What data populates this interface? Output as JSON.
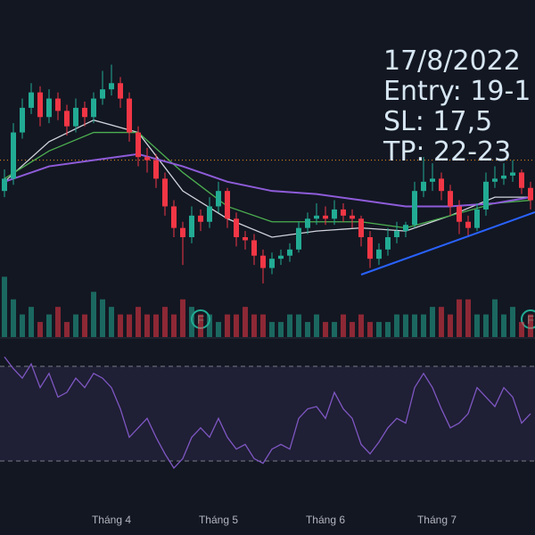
{
  "chart_data": [
    {
      "type": "candlestick",
      "xlim": [
        -0.5,
        59.5
      ],
      "ylim": [
        15.5,
        26.5
      ],
      "up_color": "#22ab94",
      "down_color": "#f23645",
      "open": [
        20.3,
        20.7,
        22.2,
        23.0,
        23.5,
        22.7,
        23.3,
        22.9,
        22.4,
        23.0,
        22.7,
        23.3,
        23.6,
        23.8,
        23.3,
        22.2,
        21.4,
        21.3,
        20.7,
        19.8,
        19.1,
        18.8,
        19.5,
        19.3,
        19.8,
        20.3,
        19.4,
        18.8,
        18.7,
        18.2,
        17.8,
        18.1,
        18.2,
        18.4,
        19.1,
        19.4,
        19.5,
        19.4,
        19.7,
        19.5,
        19.4,
        18.8,
        18.1,
        18.4,
        18.8,
        19.0,
        19.2,
        20.3,
        20.6,
        20.7,
        20.3,
        19.8,
        19.3,
        19.1,
        19.7,
        20.6,
        20.7,
        20.8,
        20.9,
        20.4
      ],
      "high": [
        21.0,
        22.5,
        23.3,
        23.8,
        23.7,
        23.6,
        23.5,
        23.1,
        23.3,
        23.2,
        23.5,
        24.2,
        24.4,
        24.0,
        23.5,
        22.4,
        21.7,
        21.5,
        20.9,
        20.0,
        19.3,
        19.8,
        19.7,
        20.1,
        20.6,
        20.4,
        19.6,
        19.0,
        18.9,
        18.4,
        18.3,
        18.4,
        18.6,
        19.3,
        19.6,
        19.9,
        19.8,
        20.0,
        19.9,
        19.7,
        19.5,
        19.0,
        18.6,
        19.1,
        19.3,
        19.3,
        20.6,
        21.4,
        21.2,
        20.9,
        20.5,
        20.0,
        19.5,
        19.9,
        20.9,
        21.1,
        21.2,
        21.3,
        21.0,
        20.6
      ],
      "low": [
        20.1,
        20.5,
        22.0,
        22.8,
        22.4,
        22.5,
        22.6,
        22.1,
        22.2,
        22.4,
        22.5,
        23.1,
        23.4,
        23.0,
        21.9,
        21.1,
        20.9,
        20.4,
        19.5,
        18.8,
        17.9,
        18.6,
        19.0,
        19.1,
        19.6,
        19.1,
        18.5,
        18.4,
        17.9,
        17.3,
        17.6,
        17.9,
        18.0,
        18.3,
        18.9,
        19.2,
        19.2,
        19.2,
        19.3,
        19.1,
        18.5,
        17.8,
        17.9,
        18.2,
        18.6,
        18.8,
        19.1,
        20.1,
        20.3,
        20.0,
        19.5,
        18.9,
        18.8,
        19.0,
        19.5,
        20.4,
        20.5,
        20.6,
        20.2,
        19.7
      ],
      "close": [
        20.7,
        22.2,
        23.0,
        23.5,
        22.7,
        23.3,
        22.9,
        22.4,
        23.0,
        22.7,
        23.3,
        23.6,
        23.8,
        23.3,
        22.2,
        21.4,
        21.3,
        20.7,
        19.8,
        19.1,
        18.8,
        19.5,
        19.3,
        19.8,
        20.3,
        19.4,
        18.8,
        18.7,
        18.2,
        17.8,
        18.1,
        18.2,
        18.4,
        19.1,
        19.4,
        19.5,
        19.4,
        19.7,
        19.5,
        19.4,
        18.8,
        18.1,
        18.4,
        18.8,
        19.0,
        19.2,
        20.3,
        20.6,
        20.7,
        20.3,
        19.8,
        19.3,
        19.1,
        19.7,
        20.6,
        20.7,
        20.8,
        20.9,
        20.4,
        20.0
      ],
      "series": [
        {
          "color": "#d1d4dc",
          "x": [
            0,
            5,
            10,
            15,
            20,
            25,
            30,
            35,
            40,
            45,
            50,
            55,
            59
          ],
          "values": [
            20.6,
            21.9,
            22.6,
            22.2,
            20.3,
            19.4,
            18.8,
            19.0,
            19.1,
            19.0,
            19.5,
            20.1,
            20.1
          ]
        },
        {
          "color": "#4caf50",
          "x": [
            0,
            5,
            10,
            15,
            20,
            25,
            30,
            35,
            40,
            45,
            50,
            55,
            59
          ],
          "values": [
            20.7,
            21.6,
            22.2,
            22.2,
            20.9,
            19.8,
            19.3,
            19.3,
            19.3,
            19.1,
            19.5,
            19.9,
            20.0
          ]
        },
        {
          "color": "#8e5cd9",
          "x": [
            0,
            5,
            10,
            15,
            20,
            25,
            30,
            35,
            40,
            45,
            50,
            55,
            59
          ],
          "values": [
            20.6,
            21.1,
            21.3,
            21.5,
            21.1,
            20.6,
            20.3,
            20.2,
            20.0,
            19.8,
            19.8,
            19.9,
            20.1
          ]
        }
      ],
      "price_line": 21.3,
      "price_line_color": "#f7931a",
      "markers": [
        {
          "x": 22,
          "label": "F"
        },
        {
          "x": 59,
          "label": "F"
        }
      ],
      "annotations": [
        "17/8/2022",
        "Entry: 19-1",
        "SL: 17,5",
        "TP: 22-23"
      ]
    },
    {
      "type": "bar",
      "xlim": [
        -0.5,
        59.5
      ],
      "ylim": [
        0,
        11
      ],
      "up_color": "rgba(34,171,148,0.55)",
      "down_color": "rgba(242,54,69,0.55)",
      "values": [
        8,
        5,
        3,
        4,
        2,
        3,
        4,
        2,
        3,
        3,
        6,
        5,
        4,
        3,
        3,
        4,
        3,
        3,
        4,
        3,
        5,
        4,
        3,
        3,
        2,
        3,
        3,
        4,
        3,
        3,
        2,
        2,
        3,
        3,
        2,
        3,
        2,
        2,
        3,
        2,
        3,
        2,
        2,
        2,
        3,
        3,
        3,
        3,
        4,
        4,
        3,
        5,
        5,
        3,
        3,
        5,
        3,
        4,
        2,
        3
      ]
    },
    {
      "type": "line",
      "xlim": [
        -0.5,
        59.5
      ],
      "ylim": [
        10,
        82
      ],
      "color": "#7e57c2",
      "levels": [
        70,
        30
      ],
      "values": [
        74,
        69,
        65,
        71,
        61,
        67,
        57,
        59,
        65,
        61,
        67,
        65,
        61,
        52,
        40,
        44,
        48,
        40,
        33,
        27,
        31,
        40,
        44,
        40,
        48,
        40,
        35,
        37,
        31,
        29,
        35,
        37,
        35,
        48,
        52,
        53,
        48,
        59,
        52,
        48,
        37,
        33,
        38,
        44,
        48,
        46,
        61,
        67,
        61,
        52,
        44,
        46,
        50,
        61,
        57,
        53,
        61,
        57,
        46,
        50
      ],
      "xticks": [
        {
          "value": 12,
          "label": "Tháng 4"
        },
        {
          "value": 24,
          "label": "Tháng 5"
        },
        {
          "value": 36,
          "label": "Tháng 6"
        },
        {
          "value": 48.5,
          "label": "Tháng 7"
        }
      ]
    }
  ]
}
